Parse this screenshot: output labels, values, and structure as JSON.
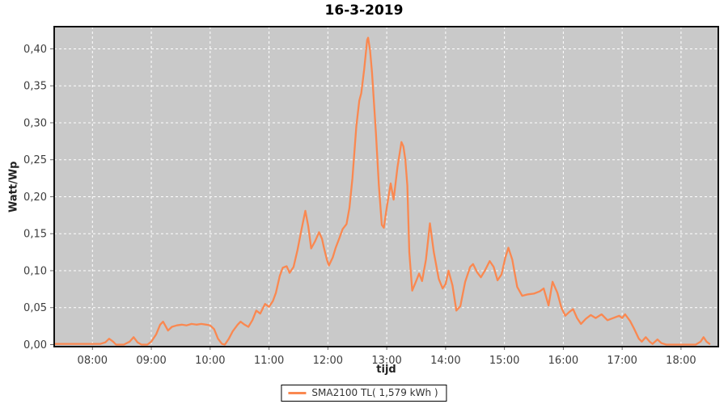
{
  "chart_data": {
    "type": "line",
    "title": "16-3-2019",
    "xlabel": "tijd",
    "ylabel": "Watt/Wp",
    "legend_position": "bottom-center",
    "grid": "white dashed, on",
    "xlim": [
      "7:21",
      "18:38"
    ],
    "ylim": [
      0,
      0.43
    ],
    "x_ticks": [
      {
        "t": "8:00",
        "label": "08:00"
      },
      {
        "t": "9:00",
        "label": "09:00"
      },
      {
        "t": "10:00",
        "label": "10:00"
      },
      {
        "t": "11:00",
        "label": "11:00"
      },
      {
        "t": "12:00",
        "label": "12:00"
      },
      {
        "t": "13:00",
        "label": "13:00"
      },
      {
        "t": "14:00",
        "label": "14:00"
      },
      {
        "t": "15:00",
        "label": "15:00"
      },
      {
        "t": "16:00",
        "label": "16:00"
      },
      {
        "t": "17:00",
        "label": "17:00"
      },
      {
        "t": "18:00",
        "label": "18:00"
      }
    ],
    "y_ticks": [
      {
        "v": 0.0,
        "label": "0,00"
      },
      {
        "v": 0.05,
        "label": "0,05"
      },
      {
        "v": 0.1,
        "label": "0,10"
      },
      {
        "v": 0.15,
        "label": "0,15"
      },
      {
        "v": 0.2,
        "label": "0,20"
      },
      {
        "v": 0.25,
        "label": "0,25"
      },
      {
        "v": 0.3,
        "label": "0,30"
      },
      {
        "v": 0.35,
        "label": "0,35"
      },
      {
        "v": 0.4,
        "label": "0,40"
      }
    ],
    "colors": {
      "plot_bg": "#c9c9c9",
      "grid": "#ffffff",
      "series": "#fa8850",
      "border": "#111111",
      "tick": "#666666",
      "tick_text": "#3d3d3d"
    },
    "series": [
      {
        "name": "SMA2100 TL( 1,579 kWh )",
        "color": "#fa8850",
        "points": [
          [
            "7:21",
            0.001
          ],
          [
            "7:30",
            0.001
          ],
          [
            "7:40",
            0.001
          ],
          [
            "7:50",
            0.001
          ],
          [
            "8:00",
            0.001
          ],
          [
            "8:08",
            0.001
          ],
          [
            "8:13",
            0.003
          ],
          [
            "8:17",
            0.008
          ],
          [
            "8:21",
            0.004
          ],
          [
            "8:24",
            0.0
          ],
          [
            "8:32",
            0.0
          ],
          [
            "8:38",
            0.004
          ],
          [
            "8:42",
            0.01
          ],
          [
            "8:46",
            0.003
          ],
          [
            "8:50",
            0.0
          ],
          [
            "8:56",
            0.0
          ],
          [
            "9:00",
            0.004
          ],
          [
            "9:05",
            0.014
          ],
          [
            "9:09",
            0.027
          ],
          [
            "9:12",
            0.031
          ],
          [
            "9:15",
            0.024
          ],
          [
            "9:17",
            0.019
          ],
          [
            "9:21",
            0.024
          ],
          [
            "9:26",
            0.026
          ],
          [
            "9:31",
            0.027
          ],
          [
            "9:36",
            0.026
          ],
          [
            "9:41",
            0.028
          ],
          [
            "9:46",
            0.027
          ],
          [
            "9:51",
            0.028
          ],
          [
            "9:56",
            0.027
          ],
          [
            "10:00",
            0.026
          ],
          [
            "10:04",
            0.021
          ],
          [
            "10:08",
            0.008
          ],
          [
            "10:12",
            0.001
          ],
          [
            "10:15",
            0.0
          ],
          [
            "10:19",
            0.008
          ],
          [
            "10:23",
            0.018
          ],
          [
            "10:28",
            0.027
          ],
          [
            "10:31",
            0.031
          ],
          [
            "10:35",
            0.027
          ],
          [
            "10:39",
            0.024
          ],
          [
            "10:43",
            0.033
          ],
          [
            "10:47",
            0.046
          ],
          [
            "10:51",
            0.042
          ],
          [
            "10:56",
            0.055
          ],
          [
            "11:00",
            0.051
          ],
          [
            "11:04",
            0.059
          ],
          [
            "11:07",
            0.07
          ],
          [
            "11:11",
            0.093
          ],
          [
            "11:14",
            0.104
          ],
          [
            "11:18",
            0.106
          ],
          [
            "11:21",
            0.097
          ],
          [
            "11:25",
            0.105
          ],
          [
            "11:29",
            0.128
          ],
          [
            "11:33",
            0.155
          ],
          [
            "11:37",
            0.181
          ],
          [
            "11:40",
            0.16
          ],
          [
            "11:43",
            0.13
          ],
          [
            "11:47",
            0.14
          ],
          [
            "11:51",
            0.152
          ],
          [
            "11:54",
            0.143
          ],
          [
            "11:56",
            0.131
          ],
          [
            "11:59",
            0.115
          ],
          [
            "12:01",
            0.107
          ],
          [
            "12:05",
            0.118
          ],
          [
            "12:08",
            0.131
          ],
          [
            "12:12",
            0.145
          ],
          [
            "12:15",
            0.156
          ],
          [
            "12:19",
            0.163
          ],
          [
            "12:22",
            0.185
          ],
          [
            "12:25",
            0.225
          ],
          [
            "12:29",
            0.295
          ],
          [
            "12:32",
            0.33
          ],
          [
            "12:34",
            0.34
          ],
          [
            "12:37",
            0.372
          ],
          [
            "12:40",
            0.412
          ],
          [
            "12:41",
            0.415
          ],
          [
            "12:43",
            0.398
          ],
          [
            "12:45",
            0.368
          ],
          [
            "12:49",
            0.285
          ],
          [
            "12:52",
            0.215
          ],
          [
            "12:55",
            0.162
          ],
          [
            "12:57",
            0.158
          ],
          [
            "13:00",
            0.185
          ],
          [
            "13:04",
            0.218
          ],
          [
            "13:07",
            0.196
          ],
          [
            "13:11",
            0.24
          ],
          [
            "13:15",
            0.274
          ],
          [
            "13:17",
            0.268
          ],
          [
            "13:19",
            0.25
          ],
          [
            "13:21",
            0.215
          ],
          [
            "13:23",
            0.125
          ],
          [
            "13:26",
            0.073
          ],
          [
            "13:30",
            0.086
          ],
          [
            "13:33",
            0.096
          ],
          [
            "13:36",
            0.086
          ],
          [
            "13:40",
            0.115
          ],
          [
            "13:44",
            0.164
          ],
          [
            "13:48",
            0.125
          ],
          [
            "13:53",
            0.089
          ],
          [
            "13:57",
            0.076
          ],
          [
            "14:00",
            0.082
          ],
          [
            "14:03",
            0.1
          ],
          [
            "14:07",
            0.08
          ],
          [
            "14:11",
            0.046
          ],
          [
            "14:15",
            0.052
          ],
          [
            "14:20",
            0.085
          ],
          [
            "14:25",
            0.105
          ],
          [
            "14:28",
            0.109
          ],
          [
            "14:32",
            0.098
          ],
          [
            "14:36",
            0.091
          ],
          [
            "14:40",
            0.1
          ],
          [
            "14:45",
            0.113
          ],
          [
            "14:49",
            0.105
          ],
          [
            "14:53",
            0.087
          ],
          [
            "14:57",
            0.095
          ],
          [
            "15:01",
            0.118
          ],
          [
            "15:04",
            0.131
          ],
          [
            "15:08",
            0.115
          ],
          [
            "15:13",
            0.078
          ],
          [
            "15:18",
            0.066
          ],
          [
            "15:24",
            0.068
          ],
          [
            "15:30",
            0.069
          ],
          [
            "15:36",
            0.072
          ],
          [
            "15:40",
            0.076
          ],
          [
            "15:45",
            0.053
          ],
          [
            "15:49",
            0.085
          ],
          [
            "15:54",
            0.07
          ],
          [
            "15:58",
            0.05
          ],
          [
            "16:02",
            0.039
          ],
          [
            "16:06",
            0.044
          ],
          [
            "16:10",
            0.048
          ],
          [
            "16:14",
            0.036
          ],
          [
            "16:18",
            0.028
          ],
          [
            "16:23",
            0.035
          ],
          [
            "16:28",
            0.04
          ],
          [
            "16:33",
            0.036
          ],
          [
            "16:39",
            0.041
          ],
          [
            "16:45",
            0.033
          ],
          [
            "16:51",
            0.036
          ],
          [
            "16:57",
            0.039
          ],
          [
            "17:00",
            0.036
          ],
          [
            "17:03",
            0.041
          ],
          [
            "17:08",
            0.032
          ],
          [
            "17:12",
            0.022
          ],
          [
            "17:17",
            0.008
          ],
          [
            "17:20",
            0.004
          ],
          [
            "17:24",
            0.01
          ],
          [
            "17:28",
            0.004
          ],
          [
            "17:31",
            0.001
          ],
          [
            "17:36",
            0.007
          ],
          [
            "17:40",
            0.002
          ],
          [
            "17:45",
            0.0
          ],
          [
            "17:55",
            0.0
          ],
          [
            "18:05",
            0.0
          ],
          [
            "18:15",
            0.0
          ],
          [
            "18:20",
            0.004
          ],
          [
            "18:23",
            0.01
          ],
          [
            "18:26",
            0.004
          ],
          [
            "18:29",
            0.001
          ]
        ]
      }
    ]
  }
}
